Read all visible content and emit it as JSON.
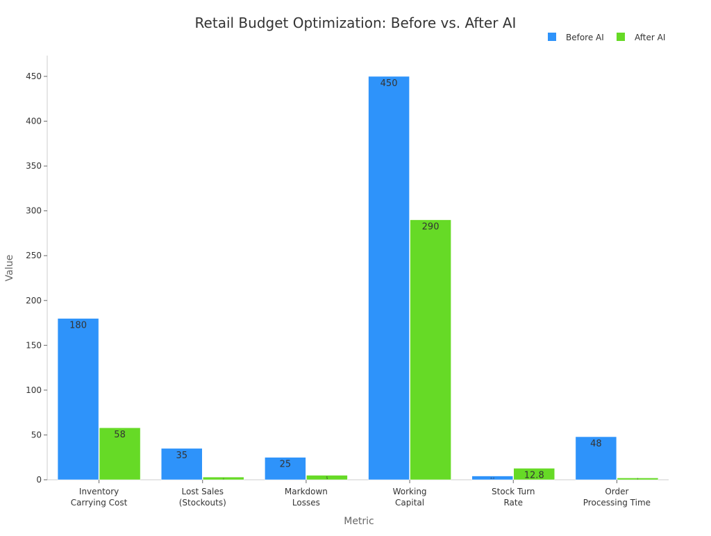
{
  "chart_data": {
    "type": "bar",
    "title": "Retail Budget Optimization: Before vs. After AI",
    "xlabel": "Metric",
    "ylabel": "Value",
    "ylim": [
      0,
      470
    ],
    "yticks": [
      0,
      50,
      100,
      150,
      200,
      250,
      300,
      350,
      400,
      450
    ],
    "grid": false,
    "legend_position": "top-right",
    "categories": [
      [
        "Inventory",
        "Carrying Cost"
      ],
      [
        "Lost Sales",
        "(Stockouts)"
      ],
      [
        "Markdown",
        "Losses"
      ],
      [
        "Working",
        "Capital"
      ],
      [
        "Stock Turn",
        "Rate"
      ],
      [
        "Order",
        "Processing Time"
      ]
    ],
    "series": [
      {
        "name": "Before AI",
        "color": "#2e93fa",
        "values": [
          180,
          35,
          25,
          450,
          4.2,
          48
        ]
      },
      {
        "name": "After AI",
        "color": "#66da26",
        "values": [
          58,
          3,
          5,
          290,
          12.8,
          2
        ]
      }
    ],
    "data_labels": [
      [
        "180",
        "35",
        "25",
        "450",
        "4.2",
        "48"
      ],
      [
        "58",
        "3",
        "5",
        "290",
        "12.8",
        "2"
      ]
    ]
  }
}
